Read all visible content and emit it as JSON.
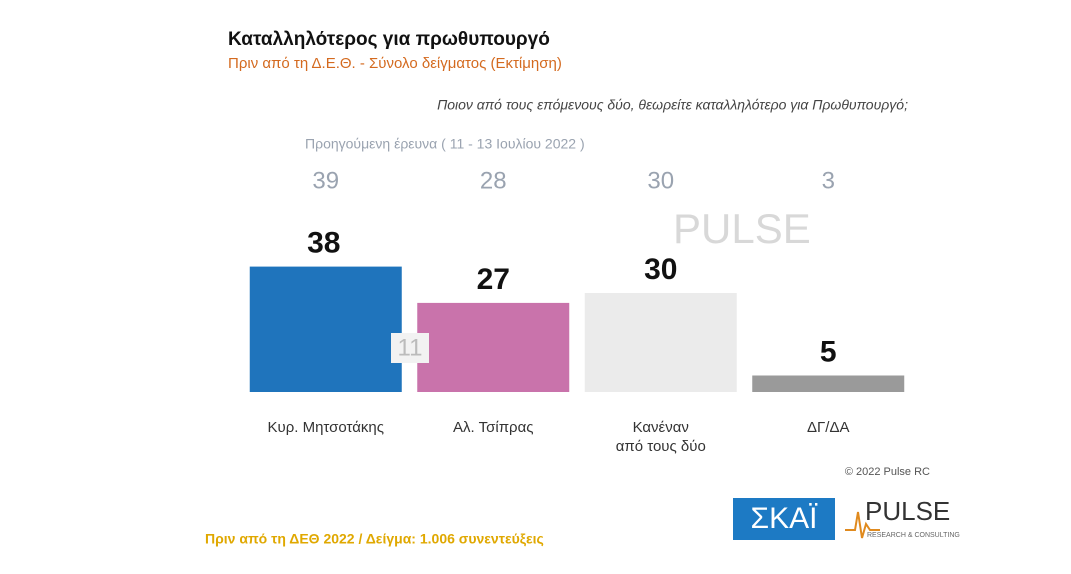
{
  "chart_data": {
    "type": "bar",
    "title": "Καταλληλότερος για πρωθυπουργό",
    "subtitle": "Πριν από τη Δ.Ε.Θ.  -  Σύνολο δείγματος   (Εκτίμηση)",
    "question": "Ποιον από τους επόμενους δύο, θεωρείτε καταλληλότερο για Πρωθυπουργό;",
    "categories": [
      "Κυρ. Μητσοτάκης",
      "Αλ. Τσίπρας",
      "Κανέναν\nαπό τους δύο",
      "ΔΓ/ΔΑ"
    ],
    "values": [
      38,
      27,
      30,
      5
    ],
    "colors": [
      "#1f74bc",
      "#c973ab",
      "#ebebeb",
      "#9a9a9a"
    ],
    "ylim": [
      0,
      40
    ],
    "previous": {
      "label": "Προηγούμενη έρευνα  ( 11 - 13 Ιουλίου  2022 )",
      "values": [
        39,
        28,
        30,
        3
      ]
    },
    "difference": 11,
    "copyright": "© 2022 Pulse RC",
    "footer": "Πριν από τη ΔΕΘ  2022  /  Δείγμα:  1.006 συνεντεύξεις",
    "logos": {
      "skai": "ΣΚΑΪ",
      "pulse": "PULSE",
      "pulse_sub": "RESEARCH & CONSULTING"
    }
  }
}
